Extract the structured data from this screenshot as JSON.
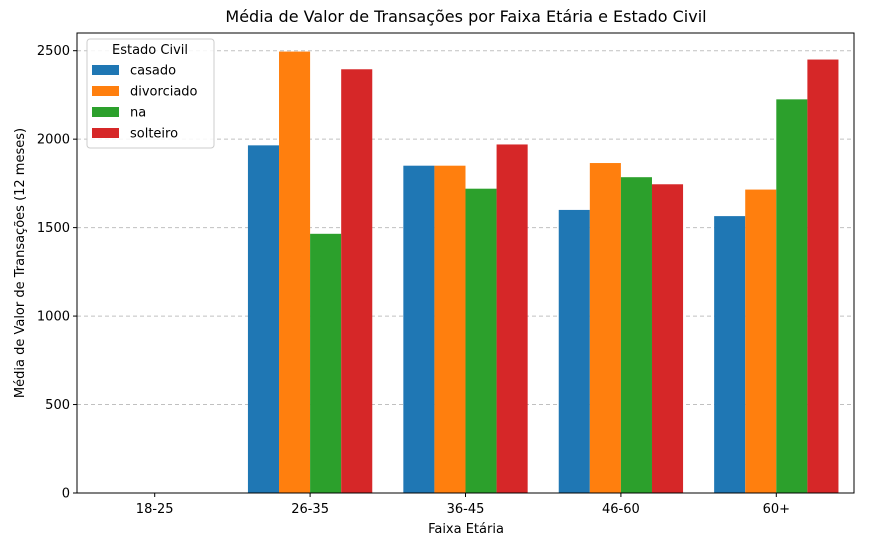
{
  "chart_data": {
    "type": "bar",
    "title": "Média de Valor de Transações por Faixa Etária e Estado Civil",
    "xlabel": "Faixa Etária",
    "ylabel": "Média de Valor de Transações (12 meses)",
    "categories": [
      "18-25",
      "26-35",
      "36-45",
      "46-60",
      "60+"
    ],
    "series": [
      {
        "name": "casado",
        "color": "#1f77b4",
        "values": [
          null,
          1965,
          1850,
          1600,
          1565
        ]
      },
      {
        "name": "divorciado",
        "color": "#ff7f0e",
        "values": [
          null,
          2495,
          1850,
          1865,
          1715
        ]
      },
      {
        "name": "na",
        "color": "#2ca02c",
        "values": [
          null,
          1465,
          1720,
          1785,
          2225
        ]
      },
      {
        "name": "solteiro",
        "color": "#d62728",
        "values": [
          null,
          2395,
          1970,
          1745,
          2450
        ]
      }
    ],
    "ylim": [
      0,
      2600
    ],
    "yticks": [
      0,
      500,
      1000,
      1500,
      2000,
      2500
    ],
    "grid": "y-dashed",
    "legend": {
      "title": "Estado Civil",
      "position": "top-left"
    }
  }
}
